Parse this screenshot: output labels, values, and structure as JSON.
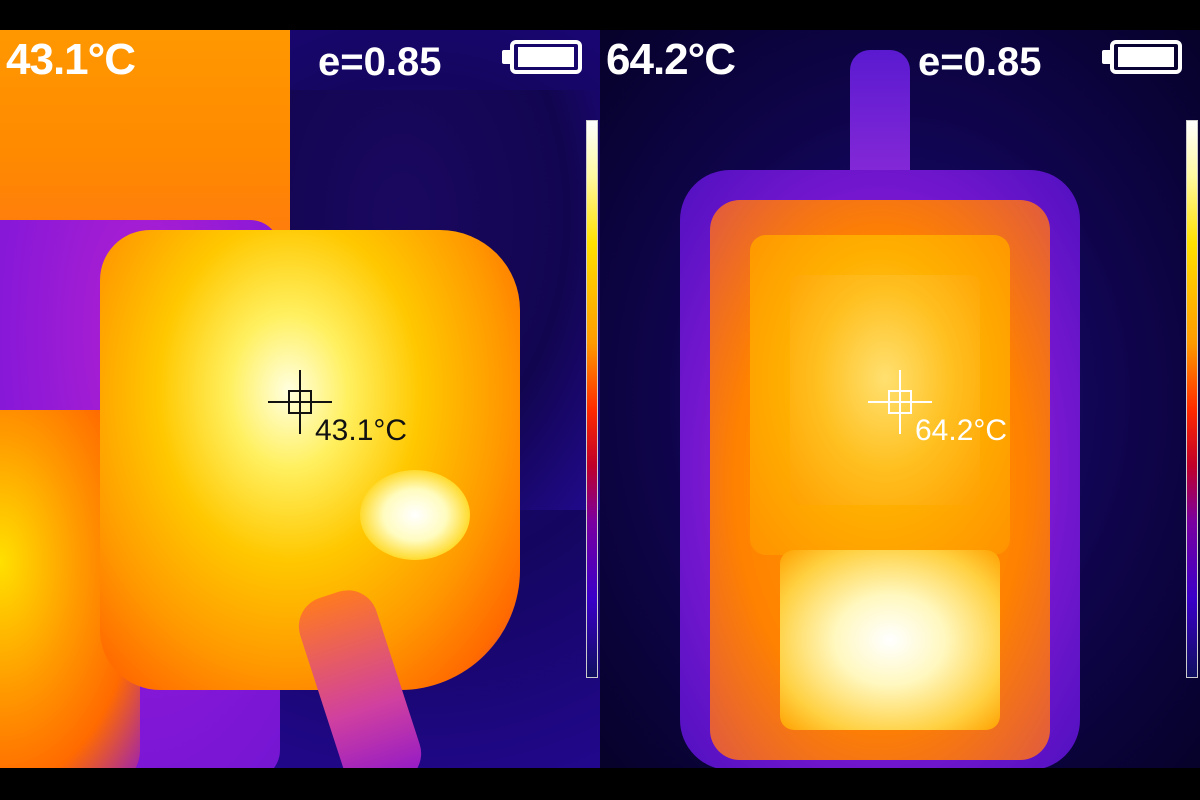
{
  "left_panel": {
    "temperature_readout": "43.1°C",
    "emissivity": "e=0.85",
    "spot_label": "43.1°C",
    "icons": [
      "battery-icon",
      "crosshair-icon"
    ]
  },
  "right_panel": {
    "temperature_readout": "64.2°C",
    "emissivity": "e=0.85",
    "spot_label": "64.2°C",
    "icons": [
      "battery-icon",
      "crosshair-icon"
    ]
  },
  "battery_level": 1.0,
  "colors": {
    "palette": "iron",
    "hot": "#ffffff",
    "warm": "#ffc000",
    "mid": "#ff7a00",
    "cool": "#7a00c8",
    "cold": "#1a0060"
  }
}
